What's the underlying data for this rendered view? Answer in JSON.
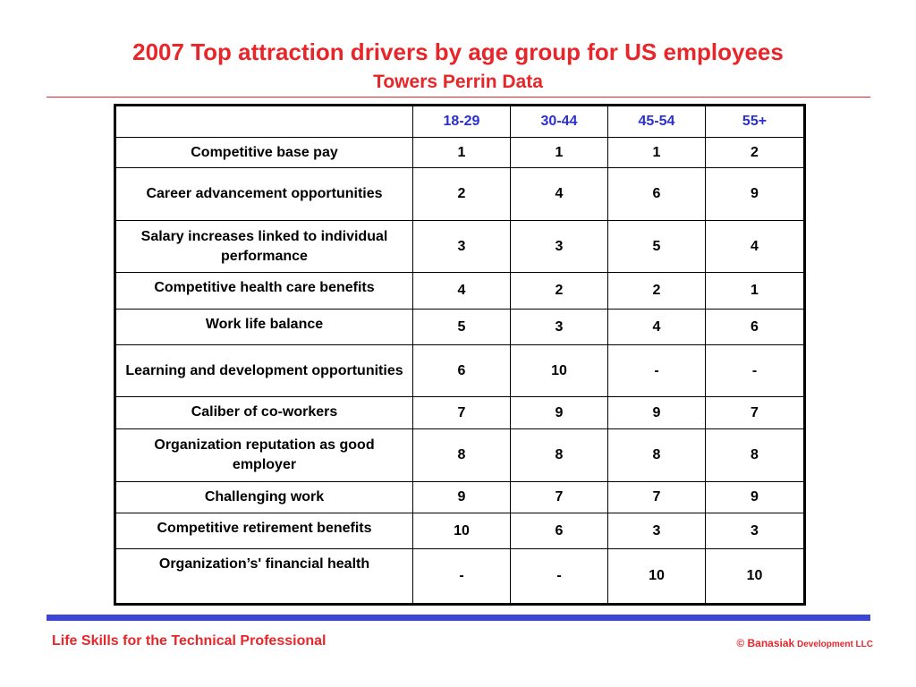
{
  "slide": {
    "title": "2007 Top attraction drivers by age group for US employees",
    "subtitle": "Towers Perrin Data"
  },
  "table": {
    "columns": [
      "18-29",
      "30-44",
      "45-54",
      "55+"
    ],
    "rows": [
      {
        "label": "Competitive base pay",
        "values": [
          "1",
          "1",
          "1",
          "2"
        ]
      },
      {
        "label": "Career advancement opportunities",
        "values": [
          "2",
          "4",
          "6",
          "9"
        ]
      },
      {
        "label": "Salary increases linked to individual performance",
        "values": [
          "3",
          "3",
          "5",
          "4"
        ]
      },
      {
        "label": "Competitive health care benefits",
        "values": [
          "4",
          "2",
          "2",
          "1"
        ]
      },
      {
        "label": "Work life balance",
        "values": [
          "5",
          "3",
          "4",
          "6"
        ]
      },
      {
        "label": "Learning and development opportunities",
        "values": [
          "6",
          "10",
          "-",
          "-"
        ]
      },
      {
        "label": "Caliber of co-workers",
        "values": [
          "7",
          "9",
          "9",
          "7"
        ]
      },
      {
        "label": "Organization reputation as good employer",
        "values": [
          "8",
          "8",
          "8",
          "8"
        ]
      },
      {
        "label": "Challenging work",
        "values": [
          "9",
          "7",
          "7",
          "9"
        ]
      },
      {
        "label": "Competitive retirement benefits",
        "values": [
          "10",
          "6",
          "3",
          "3"
        ]
      },
      {
        "label": "Organization’s' financial health",
        "values": [
          "-",
          "-",
          "10",
          "10"
        ]
      }
    ]
  },
  "footer": {
    "left": "Life Skills for the Technical Professional",
    "right_main": "© Banasiak",
    "right_small": " Development LLC"
  },
  "colors": {
    "title": "#e8262a",
    "header_text": "#2b2fce",
    "footer_bar": "#3b46d3"
  }
}
